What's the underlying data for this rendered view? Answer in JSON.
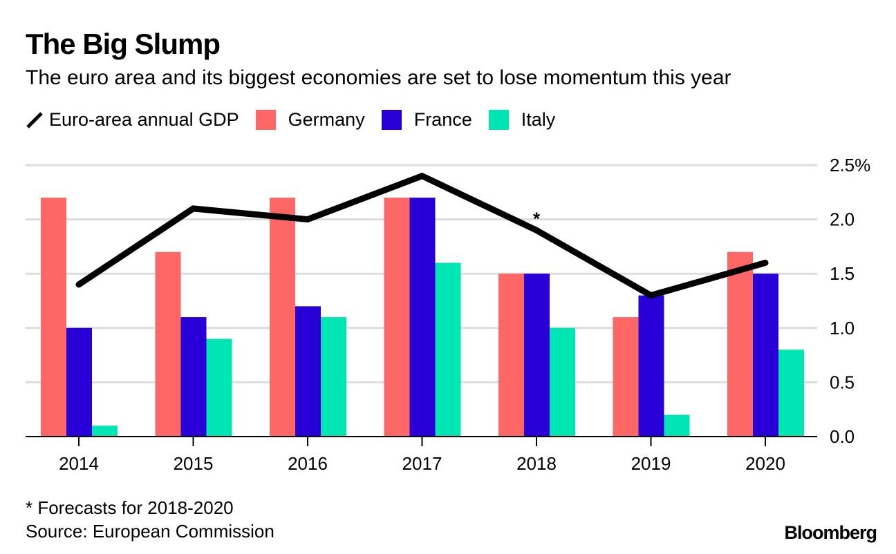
{
  "header": {
    "title": "The Big Slump",
    "subtitle": "The euro area and its biggest economies are set to lose momentum this year"
  },
  "legend": [
    {
      "label": "Euro-area annual GDP",
      "type": "line",
      "color": "#000000"
    },
    {
      "label": "Germany",
      "type": "bar",
      "color": "#ff6666"
    },
    {
      "label": "France",
      "type": "bar",
      "color": "#2800d7"
    },
    {
      "label": "Italy",
      "type": "bar",
      "color": "#00e5b4"
    }
  ],
  "footer": {
    "footnote": "* Forecasts for 2018-2020",
    "source": "Source: European Commission",
    "logo": "Bloomberg"
  },
  "chart_data": {
    "type": "bar",
    "title": "The Big Slump",
    "subtitle": "The euro area and its biggest economies are set to lose momentum this year",
    "xlabel": "",
    "ylabel": "",
    "categories": [
      "2014",
      "2015",
      "2016",
      "2017",
      "2018",
      "2019",
      "2020"
    ],
    "series": [
      {
        "name": "Germany",
        "type": "bar",
        "color": "#ff6666",
        "values": [
          2.2,
          1.7,
          2.2,
          2.2,
          1.5,
          1.1,
          1.7
        ]
      },
      {
        "name": "France",
        "type": "bar",
        "color": "#2800d7",
        "values": [
          1.0,
          1.1,
          1.2,
          2.2,
          1.5,
          1.3,
          1.5
        ]
      },
      {
        "name": "Italy",
        "type": "bar",
        "color": "#00e5b4",
        "values": [
          0.1,
          0.9,
          1.1,
          1.6,
          1.0,
          0.2,
          0.8
        ]
      },
      {
        "name": "Euro-area annual GDP",
        "type": "line",
        "color": "#000000",
        "values": [
          1.4,
          2.1,
          2.0,
          2.4,
          1.9,
          1.3,
          1.6
        ]
      }
    ],
    "ylim": [
      0,
      2.5
    ],
    "yticks": [
      0.0,
      0.5,
      1.0,
      1.5,
      2.0,
      2.5
    ],
    "ytick_labels": [
      "0.0",
      "0.5",
      "1.0",
      "1.5",
      "2.0",
      "2.5%"
    ],
    "y_axis_position": "right",
    "grid": true,
    "legend_position": "top-left",
    "annotations": [
      {
        "text": "*",
        "category": "2018",
        "series": "Euro-area annual GDP",
        "note": "Forecasts for 2018-2020"
      }
    ]
  }
}
